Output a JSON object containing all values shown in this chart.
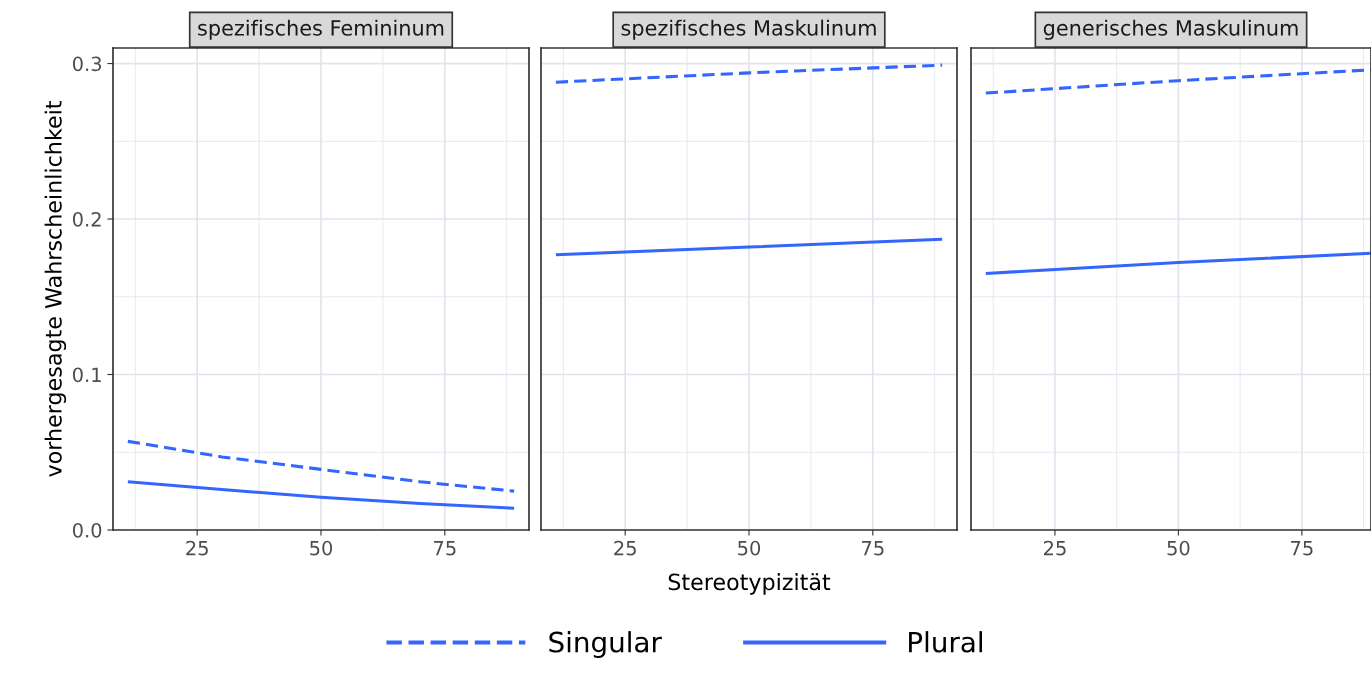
{
  "chart_data": [
    {
      "type": "line",
      "title": "spezifisches Femininum",
      "ylabel": "vorhergesagte Wahrscheinlichkeit",
      "xlim": [
        8,
        92
      ],
      "ylim": [
        0,
        0.31
      ],
      "xticks": [
        25,
        50,
        75
      ],
      "yticks": [
        {
          "value": 0,
          "label": "0.0"
        },
        0.1,
        0.2,
        0.3
      ],
      "grid": true,
      "legend": "bottom",
      "series": [
        {
          "name": "Singular",
          "color": "#3366ff",
          "line_style": "dashed",
          "x": [
            11,
            30,
            50,
            70,
            89
          ],
          "values": [
            0.057,
            0.047,
            0.039,
            0.031,
            0.025
          ]
        },
        {
          "name": "Plural",
          "color": "#3366ff",
          "line_style": "solid",
          "x": [
            11,
            30,
            50,
            70,
            89
          ],
          "values": [
            0.031,
            0.026,
            0.021,
            0.017,
            0.014
          ]
        }
      ]
    },
    {
      "type": "line",
      "title": "spezifisches Maskulinum",
      "xlabel": "Stereotypizität",
      "xlim": [
        8,
        92
      ],
      "ylim": [
        0,
        0.31
      ],
      "xticks": [
        25,
        50,
        75
      ],
      "yticks": [
        0,
        0.1,
        0.2,
        0.3
      ],
      "grid": true,
      "tick_labels": "x",
      "series": [
        {
          "color": "#3366ff",
          "line_style": "dashed",
          "x": [
            11,
            50,
            89
          ],
          "values": [
            0.288,
            0.294,
            0.299
          ]
        },
        {
          "color": "#3366ff",
          "line_style": "solid",
          "x": [
            11,
            50,
            89
          ],
          "values": [
            0.177,
            0.182,
            0.187
          ]
        }
      ]
    },
    {
      "type": "line",
      "title": "generisches Maskulinum",
      "xlim": [
        8,
        89
      ],
      "ylim": [
        0,
        0.31
      ],
      "xticks": [
        25,
        50,
        75
      ],
      "yticks": [
        0,
        0.1,
        0.2,
        0.3
      ],
      "grid": true,
      "tick_labels": "x",
      "series": [
        {
          "color": "#3366ff",
          "line_style": "dashed",
          "x": [
            11,
            50,
            89
          ],
          "values": [
            0.281,
            0.289,
            0.296
          ]
        },
        {
          "color": "#3366ff",
          "line_style": "solid",
          "x": [
            11,
            50,
            89
          ],
          "values": [
            0.165,
            0.172,
            0.178
          ]
        }
      ]
    }
  ]
}
